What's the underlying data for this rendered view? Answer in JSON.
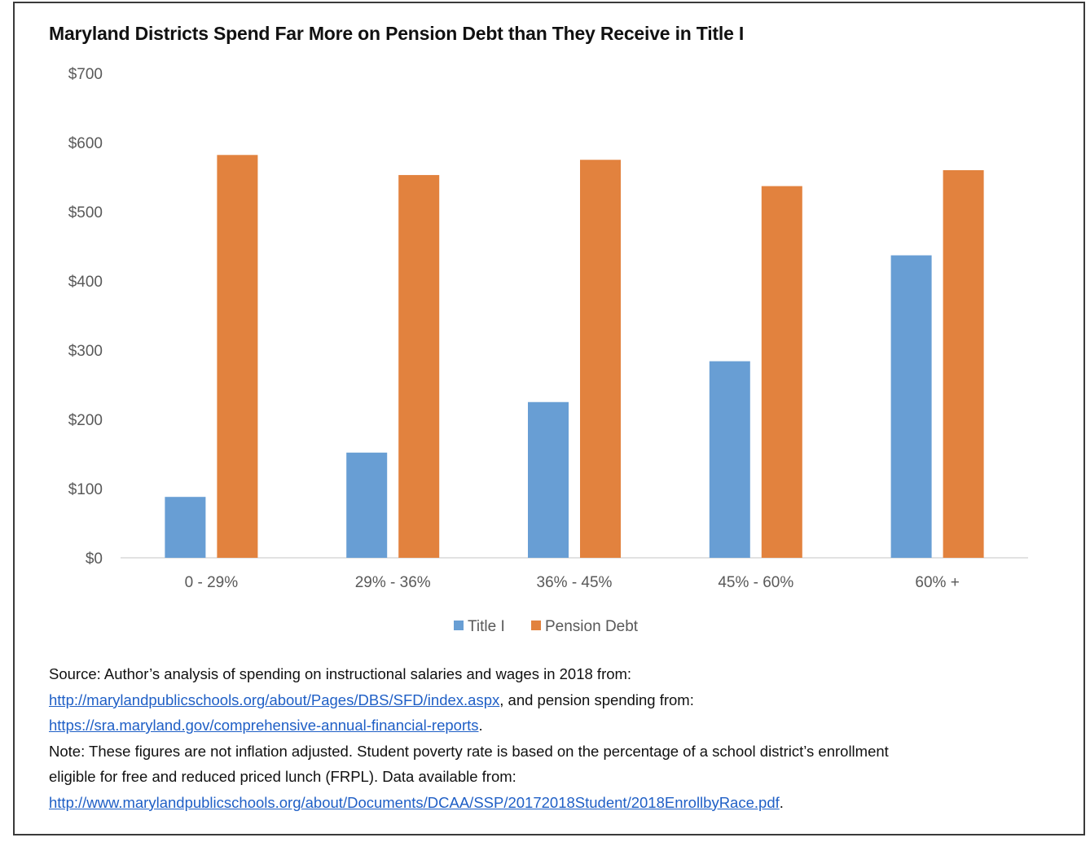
{
  "chart_data": {
    "type": "bar",
    "title": "Maryland Districts Spend Far More on Pension Debt than They Receive in Title I",
    "xlabel": "",
    "ylabel": "",
    "categories": [
      "0 - 29%",
      "29% - 36%",
      "36% - 45%",
      "45% - 60%",
      "60% +"
    ],
    "series": [
      {
        "name": "Title I",
        "color": "#689ed4",
        "values": [
          88,
          152,
          225,
          284,
          437
        ]
      },
      {
        "name": "Pension Debt",
        "color": "#e2823e",
        "values": [
          582,
          553,
          575,
          537,
          560
        ]
      }
    ],
    "ylim": [
      0,
      700
    ],
    "yticks": [
      0,
      100,
      200,
      300,
      400,
      500,
      600,
      700
    ],
    "ytick_labels": [
      "$0",
      "$100",
      "$200",
      "$300",
      "$400",
      "$500",
      "$600",
      "$700"
    ],
    "grid": false,
    "legend_position": "bottom"
  },
  "notes": {
    "source_prefix": "Source: Author’s analysis of spending on instructional salaries and wages in 2018 from:",
    "link1": "http://marylandpublicschools.org/about/Pages/DBS/SFD/index.aspx",
    "link1_suffix": ", and pension spending from:",
    "link2": "https://sra.maryland.gov/comprehensive-annual-financial-reports",
    "link2_suffix": ".",
    "note_line1": "Note: These figures are not inflation adjusted. Student poverty rate is based on the percentage of a school district’s enrollment",
    "note_line2": "eligible for free and reduced priced lunch (FRPL). Data available from:",
    "link3": "http://www.marylandpublicschools.org/about/Documents/DCAA/SSP/20172018Student/2018EnrollbyRace.pdf",
    "link3_suffix": "."
  }
}
